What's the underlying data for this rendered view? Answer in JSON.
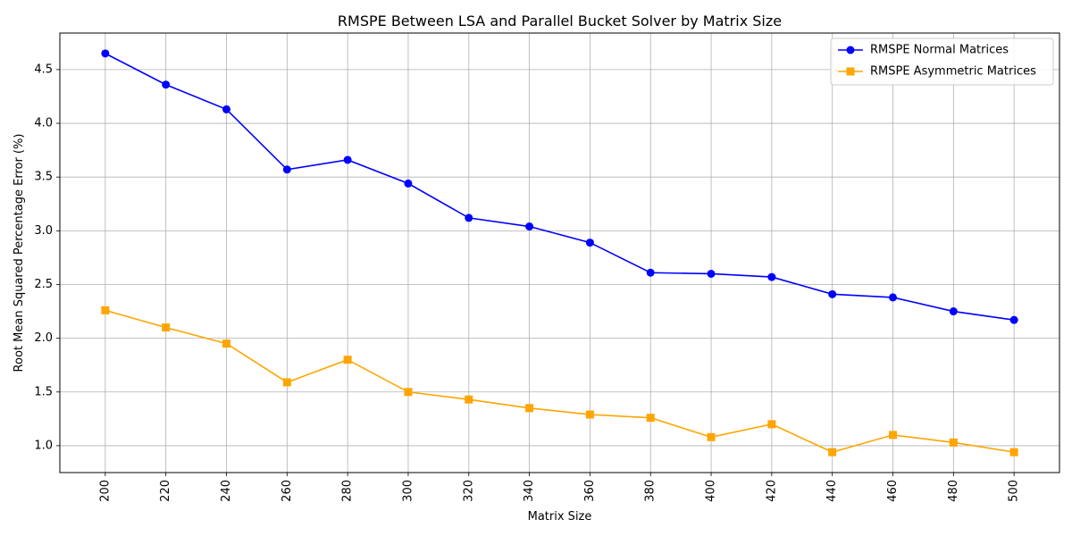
{
  "chart_data": {
    "type": "line",
    "title": "RMSPE Between LSA and Parallel Bucket Solver by Matrix Size",
    "xlabel": "Matrix Size",
    "ylabel": "Root Mean Squared Percentage Error (%)",
    "x": [
      200,
      220,
      240,
      260,
      280,
      300,
      320,
      340,
      360,
      380,
      400,
      420,
      440,
      460,
      480,
      500
    ],
    "xticks": [
      "200",
      "220",
      "240",
      "260",
      "280",
      "300",
      "320",
      "340",
      "360",
      "380",
      "400",
      "420",
      "440",
      "460",
      "480",
      "500"
    ],
    "yticks": [
      "1.0",
      "1.5",
      "2.0",
      "2.5",
      "3.0",
      "3.5",
      "4.0",
      "4.5"
    ],
    "ylim": [
      0.75,
      4.84
    ],
    "grid": true,
    "legend_position": "top-right",
    "series": [
      {
        "name": "RMSPE Normal Matrices",
        "color": "#0000ff",
        "marker": "circle",
        "values": [
          4.65,
          4.36,
          4.13,
          3.57,
          3.66,
          3.44,
          3.12,
          3.04,
          2.89,
          2.61,
          2.6,
          2.57,
          2.41,
          2.38,
          2.25,
          2.17
        ]
      },
      {
        "name": "RMSPE Asymmetric Matrices",
        "color": "#ffa500",
        "marker": "square",
        "values": [
          2.26,
          2.1,
          1.95,
          1.59,
          1.8,
          1.5,
          1.43,
          1.35,
          1.29,
          1.26,
          1.08,
          1.2,
          0.94,
          1.1,
          1.03,
          0.94
        ]
      }
    ]
  }
}
